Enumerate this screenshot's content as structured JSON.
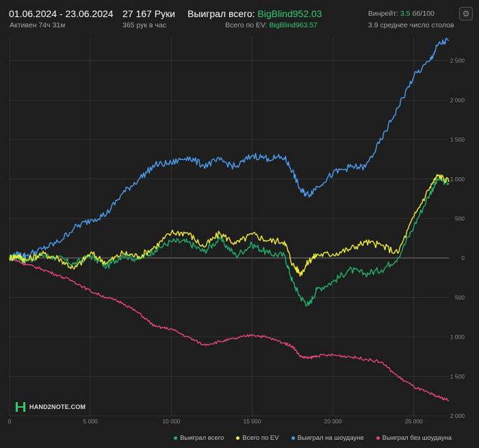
{
  "header": {
    "date_range": "01.06.2024 - 23.06.2024",
    "active_time": "Активен 74ч 31м",
    "hands": "27 167 Руки",
    "hands_per_hour": "365 рук в час",
    "won_label": "Выиграл всего:",
    "won_value": "BigBlind952.03",
    "ev_label": "Всего по EV:",
    "ev_value": "BigBlind963.57",
    "winrate_label": "Винрейт:",
    "winrate_value": "3.5",
    "winrate_unit": "бб/100",
    "tables": "3.9 среднее число столов",
    "settings_icon": "gear-icon"
  },
  "logo": {
    "text": "HAND2NOTE.COM"
  },
  "colors": {
    "won": "#21b06b",
    "ev": "#f2ee3a",
    "showdown": "#4a9ff0",
    "no_showdown": "#e8457c",
    "background": "#1e1e1e",
    "grid": "#3a3a3a"
  },
  "chart_data": {
    "type": "line",
    "xlabel": "",
    "ylabel": "",
    "xlim": [
      0,
      27167
    ],
    "ylim": [
      -2000,
      2800
    ],
    "x_ticks": [
      0,
      5000,
      10000,
      15000,
      20000,
      25000
    ],
    "x_tick_labels": [
      "0",
      "5 000",
      "10 000",
      "15 000",
      "20 000",
      "25 000"
    ],
    "y_ticks": [
      2500,
      2000,
      1500,
      1000,
      500,
      0,
      -500,
      -1000,
      -1500,
      -2000
    ],
    "y_tick_labels": [
      "2 500",
      "2 000",
      "1 500",
      "1 000",
      "500",
      "0",
      "500",
      "1 000",
      "1 500",
      "2 000"
    ],
    "x": [
      0,
      500,
      1000,
      2000,
      3000,
      4000,
      5000,
      6000,
      7000,
      8000,
      9000,
      10000,
      11000,
      12000,
      13000,
      14000,
      15000,
      16000,
      17000,
      17500,
      18000,
      18500,
      19000,
      20000,
      21000,
      22000,
      23000,
      24000,
      25000,
      26000,
      26500,
      27167
    ],
    "series": [
      {
        "name": "Выиграл всего",
        "color_key": "won",
        "values": [
          0,
          20,
          -40,
          40,
          0,
          -80,
          30,
          -110,
          40,
          -20,
          100,
          210,
          200,
          80,
          240,
          30,
          170,
          60,
          30,
          -300,
          -500,
          -600,
          -400,
          -300,
          -150,
          -200,
          -150,
          0,
          400,
          820,
          1000,
          950
        ]
      },
      {
        "name": "Всего по EV",
        "color_key": "ev",
        "values": [
          0,
          30,
          -30,
          50,
          0,
          -140,
          60,
          -60,
          60,
          20,
          140,
          320,
          320,
          140,
          310,
          180,
          300,
          220,
          210,
          -80,
          -200,
          -40,
          40,
          50,
          110,
          200,
          160,
          60,
          520,
          900,
          1050,
          963
        ]
      },
      {
        "name": "Выиграл на шоудауне",
        "color_key": "showdown",
        "values": [
          0,
          40,
          30,
          110,
          200,
          380,
          480,
          560,
          820,
          1000,
          1180,
          1200,
          1280,
          1170,
          1240,
          1150,
          1300,
          1260,
          1270,
          1100,
          850,
          800,
          900,
          1070,
          1150,
          1150,
          1500,
          1900,
          2300,
          2500,
          2700,
          2760
        ]
      },
      {
        "name": "Выиграл без шоудауна",
        "color_key": "no_showdown",
        "values": [
          0,
          -40,
          -80,
          -140,
          -220,
          -300,
          -420,
          -500,
          -570,
          -700,
          -870,
          -900,
          -1000,
          -1100,
          -1060,
          -1020,
          -970,
          -1010,
          -1080,
          -1120,
          -1250,
          -1270,
          -1240,
          -1230,
          -1250,
          -1280,
          -1320,
          -1500,
          -1630,
          -1720,
          -1760,
          -1800
        ]
      }
    ]
  }
}
